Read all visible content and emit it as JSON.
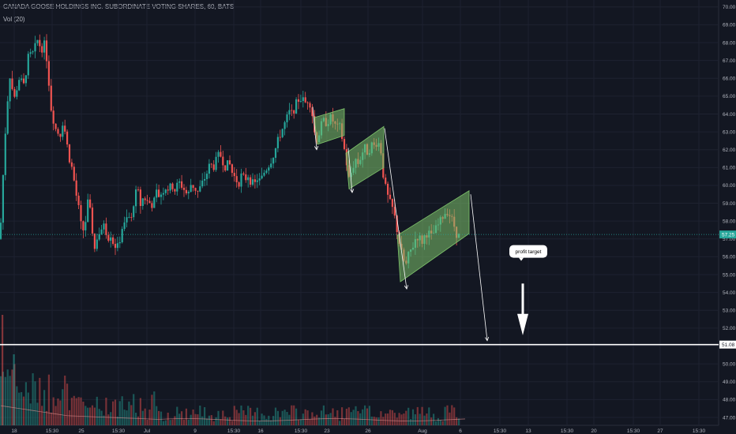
{
  "header": {
    "title": "CANADA GOOSE HOLDINGS INC. SUBORDINATE VOTING SHARES, 60, BATS",
    "volume_indicator": "Vol (20)"
  },
  "colors": {
    "background": "#131722",
    "up": "#26a69a",
    "down": "#ef5350",
    "grid": "#1e2230",
    "axis_text": "#b2b5be",
    "channel_fill": "#7ec36b",
    "current_price_badge": "#26a69a",
    "support_line": "#ffffff"
  },
  "annotations": {
    "profit_target_label": "profit target",
    "current_price_badge": "57.25",
    "support_price_badge": "51.08"
  },
  "chart_data": {
    "type": "candlestick",
    "title": "CANADA GOOSE HOLDINGS INC. SUBORDINATE VOTING SHARES, 60, BATS",
    "ylim": [
      46.6,
      70.3
    ],
    "y_ticks": [
      47.0,
      48.0,
      49.0,
      50.0,
      51.0,
      52.0,
      53.0,
      54.0,
      55.0,
      56.0,
      57.0,
      58.0,
      59.0,
      60.0,
      61.0,
      62.0,
      63.0,
      64.0,
      65.0,
      66.0,
      67.0,
      68.0,
      69.0,
      70.0
    ],
    "x_ticks": [
      "18",
      "15:30",
      "25",
      "15:30",
      "Jul",
      "9",
      "15:30",
      "16",
      "15:30",
      "23",
      "26",
      "Aug",
      "6",
      "15:30",
      "13",
      "15:30",
      "20",
      "15:30",
      "27",
      "15:30"
    ],
    "price_path": [
      [
        0,
        57.0
      ],
      [
        6,
        62.5
      ],
      [
        12,
        66.3
      ],
      [
        18,
        64.8
      ],
      [
        24,
        66.0
      ],
      [
        30,
        65.6
      ],
      [
        36,
        67.2
      ],
      [
        42,
        67.4
      ],
      [
        48,
        68.2
      ],
      [
        52,
        67.6
      ],
      [
        56,
        67.9
      ],
      [
        60,
        66.9
      ],
      [
        64,
        64.5
      ],
      [
        70,
        63.2
      ],
      [
        76,
        62.8
      ],
      [
        80,
        63.7
      ],
      [
        84,
        62.5
      ],
      [
        88,
        61.5
      ],
      [
        92,
        60.8
      ],
      [
        96,
        59.6
      ],
      [
        100,
        58.6
      ],
      [
        104,
        57.3
      ],
      [
        108,
        57.9
      ],
      [
        112,
        59.3
      ],
      [
        116,
        57.8
      ],
      [
        120,
        56.4
      ],
      [
        124,
        57.4
      ],
      [
        128,
        57.2
      ],
      [
        132,
        58.1
      ],
      [
        136,
        57.0
      ],
      [
        140,
        57.3
      ],
      [
        144,
        56.7
      ],
      [
        150,
        56.5
      ],
      [
        154,
        57.6
      ],
      [
        158,
        57.8
      ],
      [
        162,
        58.3
      ],
      [
        166,
        58.0
      ],
      [
        170,
        59.3
      ],
      [
        174,
        59.8
      ],
      [
        178,
        58.9
      ],
      [
        182,
        59.4
      ],
      [
        186,
        59.1
      ],
      [
        190,
        59.0
      ],
      [
        194,
        58.9
      ],
      [
        198,
        59.6
      ],
      [
        202,
        59.4
      ],
      [
        206,
        59.7
      ],
      [
        210,
        59.9
      ],
      [
        214,
        59.8
      ],
      [
        218,
        60.0
      ],
      [
        222,
        59.7
      ],
      [
        226,
        60.2
      ],
      [
        230,
        60.0
      ],
      [
        234,
        59.7
      ],
      [
        238,
        59.4
      ],
      [
        242,
        60.1
      ],
      [
        246,
        59.9
      ],
      [
        250,
        59.6
      ],
      [
        254,
        59.9
      ],
      [
        258,
        60.3
      ],
      [
        262,
        60.7
      ],
      [
        266,
        61.2
      ],
      [
        270,
        61.0
      ],
      [
        274,
        61.4
      ],
      [
        278,
        61.8
      ],
      [
        282,
        61.4
      ],
      [
        286,
        61.0
      ],
      [
        290,
        61.3
      ],
      [
        294,
        60.7
      ],
      [
        298,
        60.4
      ],
      [
        302,
        60.1
      ],
      [
        306,
        60.6
      ],
      [
        310,
        60.3
      ],
      [
        314,
        60.6
      ],
      [
        318,
        60.2
      ],
      [
        322,
        60.0
      ],
      [
        326,
        60.4
      ],
      [
        330,
        60.2
      ],
      [
        334,
        60.7
      ],
      [
        338,
        61.0
      ],
      [
        342,
        61.3
      ],
      [
        346,
        61.7
      ],
      [
        350,
        62.2
      ],
      [
        354,
        62.8
      ],
      [
        358,
        63.2
      ],
      [
        362,
        63.6
      ],
      [
        366,
        64.1
      ],
      [
        370,
        64.0
      ],
      [
        374,
        64.5
      ],
      [
        378,
        64.8
      ],
      [
        382,
        64.9
      ],
      [
        386,
        64.6
      ],
      [
        390,
        64.8
      ],
      [
        394,
        64.5
      ],
      [
        398,
        63.0
      ],
      [
        402,
        62.5
      ],
      [
        406,
        63.3
      ],
      [
        410,
        63.6
      ],
      [
        414,
        63.5
      ],
      [
        418,
        63.8
      ],
      [
        422,
        63.6
      ],
      [
        426,
        63.2
      ],
      [
        430,
        63.3
      ],
      [
        434,
        62.5
      ],
      [
        438,
        61.5
      ],
      [
        442,
        60.3
      ],
      [
        446,
        60.9
      ],
      [
        450,
        61.5
      ],
      [
        454,
        61.2
      ],
      [
        458,
        61.8
      ],
      [
        462,
        62.1
      ],
      [
        466,
        61.8
      ],
      [
        470,
        62.3
      ],
      [
        474,
        62.2
      ],
      [
        478,
        62.5
      ],
      [
        482,
        62.1
      ],
      [
        486,
        60.3
      ],
      [
        490,
        59.5
      ],
      [
        494,
        59.0
      ],
      [
        498,
        58.6
      ],
      [
        502,
        57.7
      ],
      [
        506,
        56.7
      ],
      [
        510,
        55.9
      ],
      [
        514,
        55.5
      ],
      [
        518,
        56.2
      ],
      [
        522,
        56.5
      ],
      [
        526,
        57.0
      ],
      [
        530,
        57.2
      ],
      [
        534,
        56.8
      ],
      [
        538,
        57.2
      ],
      [
        542,
        57.4
      ],
      [
        546,
        57.1
      ],
      [
        550,
        57.4
      ],
      [
        554,
        57.7
      ],
      [
        558,
        58.0
      ],
      [
        562,
        58.4
      ],
      [
        566,
        58.6
      ],
      [
        570,
        58.3
      ],
      [
        574,
        57.9
      ],
      [
        578,
        57.3
      ],
      [
        582,
        57.1
      ]
    ],
    "volume_range": [
      0,
      7
    ]
  }
}
